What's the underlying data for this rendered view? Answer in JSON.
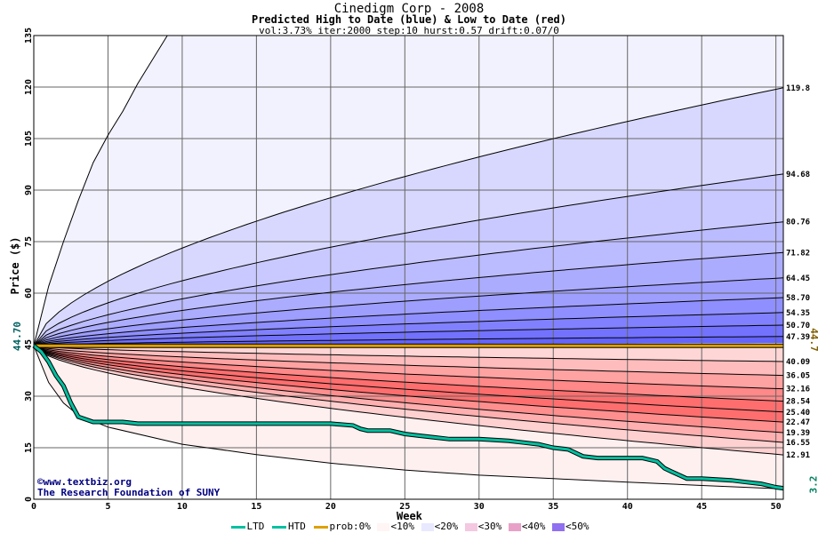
{
  "chart_data": {
    "type": "area",
    "title": "Cinedigm Corp - 2008",
    "subtitle": "Predicted High to Date (blue) &  Low to Date (red)",
    "params": "vol:3.73% iter:2000 step:10 hurst:0.57 drift:0.07/0",
    "xlabel": "Week",
    "ylabel": "Price ($)",
    "xlim": [
      0,
      50.5
    ],
    "ylim": [
      0,
      135
    ],
    "x_ticks": [
      0,
      5,
      10,
      15,
      20,
      25,
      30,
      35,
      40,
      45,
      50
    ],
    "y_ticks": [
      0,
      15,
      30,
      45,
      60,
      75,
      90,
      105,
      120,
      135
    ],
    "start_price": 44.7,
    "start_label": "44.70",
    "current_label": "44.7",
    "last_ltd_label": "3.2",
    "grid": true,
    "high_series": [
      {
        "name": "119.8",
        "final": 119.8,
        "alpha": 0.5
      },
      {
        "name": "94.68",
        "final": 94.68,
        "alpha": 0.5
      },
      {
        "name": "80.76",
        "final": 80.76,
        "alpha": 0.5
      },
      {
        "name": "71.82",
        "final": 71.82,
        "alpha": 0.5
      },
      {
        "name": "64.45",
        "final": 64.45,
        "alpha": 0.5
      },
      {
        "name": "58.70",
        "final": 58.7,
        "alpha": 0.5
      },
      {
        "name": "54.35",
        "final": 54.35,
        "alpha": 0.5
      },
      {
        "name": "50.70",
        "final": 50.7,
        "alpha": 0.5
      },
      {
        "name": "47.39",
        "final": 47.39,
        "alpha": 0.5
      }
    ],
    "low_series": [
      {
        "name": "40.09",
        "final": 40.09,
        "alpha": 0.5
      },
      {
        "name": "36.05",
        "final": 36.05,
        "alpha": 0.5
      },
      {
        "name": "32.16",
        "final": 32.16,
        "alpha": 0.5
      },
      {
        "name": "28.54",
        "final": 28.54,
        "alpha": 0.5
      },
      {
        "name": "25.40",
        "final": 25.4,
        "alpha": 0.5
      },
      {
        "name": "22.47",
        "final": 22.47,
        "alpha": 0.5
      },
      {
        "name": "19.39",
        "final": 19.39,
        "alpha": 0.5
      },
      {
        "name": "16.55",
        "final": 16.55,
        "alpha": 0.5
      },
      {
        "name": "12.91",
        "final": 12.91,
        "alpha": 0.5
      }
    ],
    "outer_high": {
      "x": [
        0,
        1,
        2,
        3,
        4,
        5,
        6,
        7,
        8,
        9
      ],
      "y": [
        44.7,
        62,
        75,
        87,
        98,
        106,
        113,
        121,
        128,
        135
      ]
    },
    "outer_low": {
      "x": [
        0,
        1,
        2,
        3,
        5,
        10,
        15,
        20,
        25,
        30,
        35,
        40,
        45,
        50.5
      ],
      "y": [
        44.7,
        34,
        28,
        24.5,
        21,
        16,
        13,
        10.5,
        8.5,
        7,
        6,
        5,
        4,
        3
      ]
    },
    "ltd_series": {
      "name": "LTD",
      "x": [
        0,
        0.5,
        1,
        1.5,
        2,
        2.5,
        3,
        4,
        5,
        6,
        7,
        10,
        14,
        20,
        21.5,
        22,
        22.5,
        24,
        25,
        26,
        27,
        28,
        30,
        32,
        33,
        34,
        35,
        36,
        37,
        38,
        39,
        40,
        41,
        42,
        42.5,
        43,
        43.5,
        44,
        45,
        47,
        48,
        49,
        50,
        50.5
      ],
      "y": [
        44.7,
        43,
        40,
        36,
        33,
        28,
        24,
        22.5,
        22.5,
        22.5,
        22,
        22,
        22,
        22,
        21.5,
        20.5,
        20,
        20,
        19,
        18.5,
        18,
        17.5,
        17.5,
        17,
        16.5,
        16,
        15,
        14.5,
        12.5,
        12,
        12,
        12,
        12,
        11,
        9,
        8,
        7,
        6,
        6,
        5.5,
        5,
        4.5,
        3.5,
        3.2
      ]
    },
    "htd_series": {
      "name": "HTD",
      "x": [
        0,
        50.5
      ],
      "y": [
        44.7,
        44.7
      ]
    },
    "legend": [
      "LTD",
      "HTD",
      "prob:0%",
      "<10%",
      "<20%",
      "<30%",
      "<40%",
      "<50%"
    ]
  },
  "credits": [
    "©www.textbiz.org",
    "The Research Foundation of SUNY"
  ],
  "colors": {
    "grid": "#666666",
    "ltd": "#00c0a0",
    "htd": "#e0a000",
    "high_base": "#5a5aff",
    "low_base": "#ff5a5a"
  }
}
